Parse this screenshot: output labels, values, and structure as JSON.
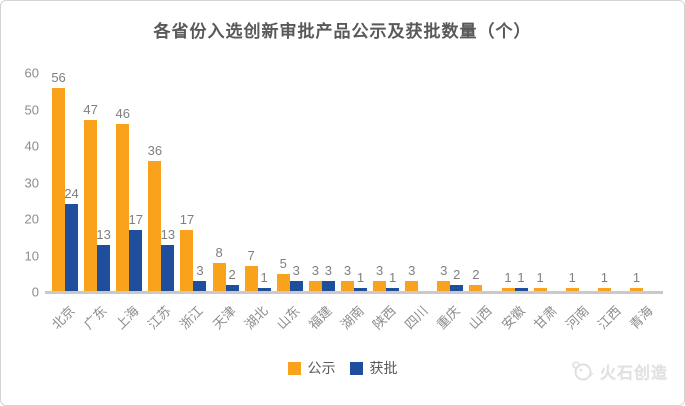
{
  "chart_data": {
    "type": "bar",
    "title": "各省份入选创新审批产品公示及获批数量（个）",
    "categories": [
      "北京",
      "广东",
      "上海",
      "江苏",
      "浙江",
      "天津",
      "湖北",
      "山东",
      "福建",
      "湖南",
      "陕西",
      "四川",
      "重庆",
      "山西",
      "安徽",
      "甘肃",
      "河南",
      "江西",
      "青海"
    ],
    "series": [
      {
        "name": "公示",
        "color": "#F9A21B",
        "values": [
          56,
          47,
          46,
          36,
          17,
          8,
          7,
          5,
          3,
          3,
          3,
          3,
          3,
          2,
          1,
          1,
          1,
          1,
          1
        ]
      },
      {
        "name": "获批",
        "color": "#1F4E9D",
        "values": [
          24,
          13,
          17,
          13,
          3,
          2,
          1,
          3,
          3,
          1,
          1,
          0,
          2,
          0,
          1,
          0,
          0,
          0,
          0
        ]
      }
    ],
    "ylim": [
      0,
      60
    ],
    "yticks": [
      0,
      10,
      20,
      30,
      40,
      50,
      60
    ],
    "grid": false,
    "legend_position": "bottom",
    "data_labels": true,
    "xlabel": "",
    "ylabel": ""
  },
  "colors": {
    "publicity_orange": "#F9A21B",
    "approved_blue": "#1F4E9D",
    "axis_gray": "#C9C9C9",
    "text_gray": "#7F7F7F",
    "title_gray": "#595959"
  },
  "footer": {
    "brand": "火石创造"
  }
}
